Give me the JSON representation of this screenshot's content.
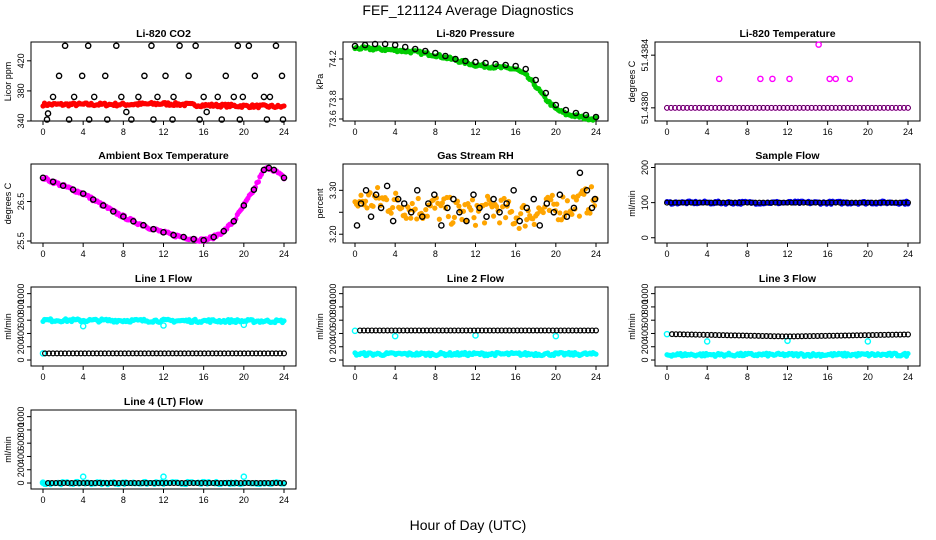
{
  "figure": {
    "title": "FEF_121124  Average Diagnostics",
    "xlabel": "Hour of Day (UTC)"
  },
  "chart_data": [
    {
      "type": "scatter",
      "title": "Li-820 CO2",
      "ylabel": "Licor ppm",
      "xlim": [
        0,
        24
      ],
      "ylim": [
        340,
        445
      ],
      "xticks": [
        0,
        4,
        8,
        12,
        16,
        20,
        24
      ],
      "yticks": [
        340,
        380,
        420
      ],
      "series": [
        {
          "color": "#ff0000",
          "style": "band",
          "x": [
            0,
            4,
            8,
            12,
            16,
            20,
            24
          ],
          "y": [
            362,
            362,
            362,
            363,
            361,
            360,
            359
          ]
        },
        {
          "color": "#000000",
          "style": "points",
          "x": [
            0.5,
            1,
            1.6,
            2.2,
            3.1,
            3.9,
            4.5,
            5.1,
            6.2,
            7.3,
            7.8,
            8.3,
            9.5,
            10.1,
            10.8,
            11.4,
            12.2,
            13.0,
            13.6,
            14.5,
            15.2,
            16.0,
            16.3,
            17.4,
            18.2,
            19.0,
            19.4,
            19.9,
            20.5,
            21.1,
            22.0,
            22.6,
            23.2,
            23.8
          ],
          "y": [
            350,
            372,
            400,
            440,
            372,
            400,
            440,
            372,
            400,
            440,
            372,
            352,
            372,
            400,
            440,
            372,
            400,
            372,
            440,
            400,
            440,
            372,
            352,
            372,
            400,
            372,
            440,
            372,
            440,
            400,
            372,
            372,
            440,
            400
          ]
        },
        {
          "color": "#000000",
          "style": "points-low",
          "x": [
            0.4,
            2.6,
            4.6,
            6.4,
            8.8,
            11.0,
            12.9,
            15.6,
            17.8,
            19.6,
            22.3,
            23.9
          ],
          "y": [
            342,
            342,
            342,
            342,
            342,
            342,
            342,
            342,
            342,
            342,
            342,
            342
          ]
        }
      ]
    },
    {
      "type": "scatter",
      "title": "Li-820 Pressure",
      "ylabel": "kPa",
      "xlim": [
        0,
        24
      ],
      "ylim": [
        73.58,
        74.37
      ],
      "xticks": [
        0,
        4,
        8,
        12,
        16,
        20,
        24
      ],
      "yticks": [
        73.6,
        73.8,
        74.2
      ],
      "series": [
        {
          "color": "#00cc00",
          "style": "band",
          "x": [
            0,
            2,
            4,
            6,
            8,
            10,
            12,
            14,
            16,
            17,
            18,
            19,
            20,
            21,
            22,
            23,
            24
          ],
          "y": [
            74.31,
            74.3,
            74.29,
            74.27,
            74.24,
            74.19,
            74.14,
            74.12,
            74.1,
            74.04,
            73.93,
            73.8,
            73.7,
            73.65,
            73.63,
            73.61,
            73.6
          ]
        },
        {
          "color": "#000000",
          "style": "points",
          "x": [
            0,
            1,
            2,
            3,
            4,
            5,
            6,
            7,
            8,
            9,
            10,
            11,
            12,
            13,
            14,
            15,
            16,
            17,
            18,
            19,
            20,
            21,
            22,
            23,
            24
          ],
          "y": [
            74.33,
            74.34,
            74.35,
            74.35,
            74.34,
            74.32,
            74.3,
            74.28,
            74.26,
            74.23,
            74.2,
            74.18,
            74.17,
            74.16,
            74.15,
            74.14,
            74.13,
            74.1,
            73.99,
            73.86,
            73.74,
            73.69,
            73.66,
            73.64,
            73.62
          ]
        }
      ]
    },
    {
      "type": "scatter",
      "title": "Li-820 Temperature",
      "ylabel": "degrees C",
      "xlim": [
        0,
        24
      ],
      "ylim": [
        51.4379,
        51.4385
      ],
      "xticks": [
        0,
        4,
        8,
        12,
        16,
        20,
        24
      ],
      "yticks": [
        51.438,
        51.4384
      ],
      "yticklabels": [
        "51.4380",
        "51.4384"
      ],
      "series": [
        {
          "color": "#ff00ff",
          "style": "points",
          "x": [
            5.2,
            9.3,
            10.5,
            12.2,
            15.1,
            16.2,
            16.8,
            18.2
          ],
          "y": [
            51.43822,
            51.43822,
            51.43822,
            51.43822,
            51.43848,
            51.43822,
            51.43822,
            51.43822
          ]
        },
        {
          "color": "#000000",
          "style": "baseline",
          "x": [
            0,
            24
          ],
          "y": [
            51.438,
            51.438
          ]
        }
      ]
    },
    {
      "type": "scatter",
      "title": "Ambient Box Temperature",
      "ylabel": "degrees C",
      "xlim": [
        0,
        24
      ],
      "ylim": [
        25.45,
        27.45
      ],
      "xticks": [
        0,
        4,
        8,
        12,
        16,
        20,
        24
      ],
      "yticks": [
        25.5,
        26.5
      ],
      "yticklabels": [
        "25.5",
        "26.5"
      ],
      "series": [
        {
          "color": "#ff00ff",
          "style": "band",
          "x": [
            0,
            1,
            2,
            3,
            4,
            5,
            6,
            7,
            8,
            9,
            10,
            11,
            12,
            13,
            14,
            15,
            16,
            17,
            18,
            19,
            20,
            21,
            22,
            22.5,
            23,
            24
          ],
          "y": [
            27.1,
            27.0,
            26.9,
            26.8,
            26.7,
            26.55,
            26.4,
            26.25,
            26.12,
            26.0,
            25.9,
            25.8,
            25.72,
            25.65,
            25.6,
            25.55,
            25.52,
            25.6,
            25.75,
            26.0,
            26.4,
            26.8,
            27.3,
            27.35,
            27.3,
            27.1
          ]
        },
        {
          "color": "#000000",
          "style": "points",
          "x": [
            0,
            1,
            2,
            3,
            4,
            5,
            6,
            7,
            8,
            9,
            10,
            11,
            12,
            13,
            14,
            15,
            16,
            17,
            18,
            19,
            20,
            21,
            22,
            22.5,
            23,
            24
          ],
          "y": [
            27.1,
            27.0,
            26.9,
            26.8,
            26.7,
            26.55,
            26.4,
            26.25,
            26.12,
            26.0,
            25.9,
            25.8,
            25.72,
            25.65,
            25.6,
            25.55,
            25.52,
            25.6,
            25.75,
            26.0,
            26.4,
            26.8,
            27.3,
            27.35,
            27.3,
            27.1
          ]
        }
      ]
    },
    {
      "type": "scatter",
      "title": "Gas Stream RH",
      "ylabel": "percent",
      "xlim": [
        0,
        24
      ],
      "ylim": [
        3.18,
        3.36
      ],
      "xticks": [
        0,
        4,
        8,
        12,
        16,
        20,
        24
      ],
      "yticks": [
        3.2,
        3.25,
        3.3
      ],
      "yticklabels": [
        "3.20",
        "",
        "3.30"
      ],
      "series": [
        {
          "color": "#ffa500",
          "style": "band",
          "x": [
            0,
            2,
            4,
            6,
            8,
            10,
            12,
            14,
            16,
            18,
            20,
            22,
            24
          ],
          "y": [
            3.27,
            3.28,
            3.27,
            3.26,
            3.26,
            3.25,
            3.25,
            3.26,
            3.24,
            3.25,
            3.26,
            3.27,
            3.28
          ]
        },
        {
          "color": "#000000",
          "style": "points",
          "x": [
            0.2,
            0.6,
            1.1,
            1.6,
            2.1,
            2.6,
            3.2,
            3.8,
            4.3,
            4.9,
            5.6,
            6.2,
            6.7,
            7.3,
            7.9,
            8.6,
            9.2,
            9.8,
            10.4,
            11.1,
            11.8,
            12.4,
            13.1,
            13.8,
            14.4,
            15.1,
            15.8,
            16.4,
            17.1,
            17.8,
            18.4,
            19.1,
            19.8,
            20.4,
            21.1,
            21.8,
            22.4,
            23.1,
            23.6,
            23.9
          ],
          "y": [
            3.22,
            3.27,
            3.3,
            3.24,
            3.29,
            3.26,
            3.31,
            3.23,
            3.28,
            3.27,
            3.25,
            3.3,
            3.24,
            3.27,
            3.29,
            3.22,
            3.26,
            3.28,
            3.25,
            3.23,
            3.29,
            3.26,
            3.24,
            3.28,
            3.25,
            3.27,
            3.3,
            3.23,
            3.26,
            3.28,
            3.22,
            3.27,
            3.25,
            3.29,
            3.24,
            3.26,
            3.34,
            3.3,
            3.26,
            3.28
          ]
        }
      ]
    },
    {
      "type": "scatter",
      "title": "Sample Flow",
      "ylabel": "ml/min",
      "xlim": [
        0,
        24
      ],
      "ylim": [
        -15,
        210
      ],
      "xticks": [
        0,
        4,
        8,
        12,
        16,
        20,
        24
      ],
      "yticks": [
        0,
        100,
        200
      ],
      "series": [
        {
          "color": "#0000ff",
          "style": "band",
          "x": [
            0,
            24
          ],
          "y": [
            100,
            100
          ]
        },
        {
          "color": "#000000",
          "style": "points-dense",
          "x": [
            0,
            24
          ],
          "y": [
            100,
            100
          ]
        }
      ]
    },
    {
      "type": "scatter",
      "title": "Line 1 Flow",
      "ylabel": "ml/min",
      "xlim": [
        0,
        24
      ],
      "ylim": [
        -90,
        1100
      ],
      "xticks": [
        0,
        4,
        8,
        12,
        16,
        20,
        24
      ],
      "yticks": [
        0,
        200,
        400,
        600,
        800,
        1000
      ],
      "series": [
        {
          "color": "#00ffff",
          "style": "band",
          "x": [
            0,
            24
          ],
          "y": [
            600,
            585
          ]
        },
        {
          "color": "#00ffff",
          "style": "outliers",
          "x": [
            0,
            4,
            12,
            20
          ],
          "y": [
            100,
            510,
            520,
            530
          ]
        },
        {
          "color": "#000000",
          "style": "points-dense",
          "x": [
            0.2,
            24
          ],
          "y": [
            100,
            100
          ]
        }
      ]
    },
    {
      "type": "scatter",
      "title": "Line 2 Flow",
      "ylabel": "ml/min",
      "xlim": [
        0,
        24
      ],
      "ylim": [
        -90,
        1100
      ],
      "xticks": [
        0,
        4,
        8,
        12,
        16,
        20,
        24
      ],
      "yticks": [
        0,
        200,
        400,
        600,
        800,
        1000
      ],
      "series": [
        {
          "color": "#00ffff",
          "style": "band",
          "x": [
            0,
            24
          ],
          "y": [
            90,
            90
          ]
        },
        {
          "color": "#00ffff",
          "style": "outliers",
          "x": [
            0,
            4,
            12,
            20
          ],
          "y": [
            440,
            360,
            370,
            360
          ]
        },
        {
          "color": "#000000",
          "style": "points-dense",
          "x": [
            0.5,
            24
          ],
          "y": [
            445,
            445
          ]
        }
      ]
    },
    {
      "type": "scatter",
      "title": "Line 3 Flow",
      "ylabel": "ml/min",
      "xlim": [
        0,
        24
      ],
      "ylim": [
        -90,
        1100
      ],
      "xticks": [
        0,
        4,
        8,
        12,
        16,
        20,
        24
      ],
      "yticks": [
        0,
        200,
        400,
        600,
        800,
        1000
      ],
      "series": [
        {
          "color": "#00ffff",
          "style": "band",
          "x": [
            0,
            24
          ],
          "y": [
            80,
            80
          ]
        },
        {
          "color": "#00ffff",
          "style": "outliers",
          "x": [
            0,
            4,
            12,
            20
          ],
          "y": [
            390,
            280,
            290,
            280
          ]
        },
        {
          "color": "#000000",
          "style": "points-dense",
          "x": [
            0.5,
            12,
            24
          ],
          "y": [
            390,
            355,
            385
          ]
        }
      ]
    },
    {
      "type": "scatter",
      "title": "Line 4 (LT) Flow",
      "ylabel": "ml/min",
      "xlim": [
        0,
        24
      ],
      "ylim": [
        -90,
        1100
      ],
      "xticks": [
        0,
        4,
        8,
        12,
        16,
        20,
        24
      ],
      "yticks": [
        0,
        200,
        400,
        600,
        800,
        1000
      ],
      "series": [
        {
          "color": "#00ffff",
          "style": "band",
          "x": [
            0,
            24
          ],
          "y": [
            0,
            0
          ]
        },
        {
          "color": "#00ffff",
          "style": "outliers",
          "x": [
            0,
            4,
            12,
            20
          ],
          "y": [
            5,
            95,
            95,
            95
          ]
        },
        {
          "color": "#000000",
          "style": "points-dense",
          "x": [
            0.5,
            24
          ],
          "y": [
            0,
            0
          ]
        }
      ]
    }
  ]
}
